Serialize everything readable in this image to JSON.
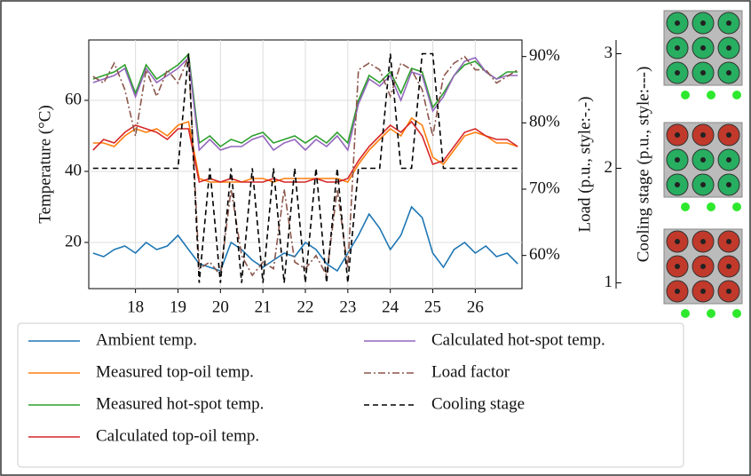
{
  "chart_data": {
    "type": "line",
    "ylabel": "Temperature (°C)",
    "y2label": "Load (p.u., style:-.-)",
    "y3label": "Cooling stage (p.u., style:---)",
    "xlim": [
      16.9,
      27.1
    ],
    "xticks": [
      18,
      19,
      20,
      21,
      22,
      23,
      24,
      25,
      26
    ],
    "ylim": [
      7,
      77
    ],
    "yticks": [
      20,
      40,
      60
    ],
    "y2lim": [
      55,
      92.5
    ],
    "y2ticks": [
      {
        "value": 60,
        "label": "60%"
      },
      {
        "value": 70,
        "label": "70%"
      },
      {
        "value": 80,
        "label": "80%"
      },
      {
        "value": 90,
        "label": "90%"
      }
    ],
    "y3lim": [
      0.95,
      3.12
    ],
    "y3ticks": [
      1,
      2,
      3
    ],
    "grid": true,
    "x": [
      17,
      17.25,
      17.5,
      17.75,
      18,
      18.25,
      18.5,
      18.75,
      19,
      19.25,
      19.5,
      19.75,
      20,
      20.25,
      20.5,
      20.75,
      21,
      21.25,
      21.5,
      21.75,
      22,
      22.25,
      22.5,
      22.75,
      23,
      23.25,
      23.5,
      23.75,
      24,
      24.25,
      24.5,
      24.75,
      25,
      25.25,
      25.5,
      25.75,
      26,
      26.25,
      26.5,
      26.75,
      27
    ],
    "series": [
      {
        "name": "Ambient temp.",
        "color": "#1f77b4",
        "dash": "solid",
        "axis": "y",
        "values": [
          17,
          16,
          18,
          19,
          17,
          20,
          18,
          19,
          22,
          18,
          14,
          13,
          12,
          20,
          18,
          15,
          13,
          15,
          17,
          16,
          20,
          18,
          14,
          12,
          17,
          22,
          28,
          24,
          18,
          22,
          30,
          27,
          17,
          13,
          18,
          20,
          17,
          19,
          16,
          17,
          14
        ]
      },
      {
        "name": "Measured top-oil temp.",
        "color": "#ff7f0e",
        "dash": "solid",
        "axis": "y",
        "values": [
          48,
          48,
          47,
          50,
          52,
          51,
          52,
          50,
          53,
          54,
          38,
          37,
          37,
          37,
          37,
          38,
          38,
          37,
          38,
          38,
          38,
          38,
          38,
          38,
          37,
          42,
          46,
          49,
          52,
          50,
          55,
          53,
          44,
          42,
          46,
          50,
          51,
          50,
          48,
          48,
          47
        ]
      },
      {
        "name": "Measured hot-spot temp.",
        "color": "#2ca02c",
        "dash": "solid",
        "axis": "y",
        "values": [
          66,
          67,
          68,
          70,
          62,
          70,
          66,
          68,
          70,
          73,
          48,
          50,
          47,
          49,
          48,
          50,
          51,
          48,
          49,
          50,
          48,
          50,
          48,
          51,
          48,
          60,
          67,
          65,
          68,
          62,
          69,
          68,
          58,
          62,
          67,
          70,
          71,
          68,
          66,
          68,
          68
        ]
      },
      {
        "name": "Calculated top-oil temp.",
        "color": "#d62728",
        "dash": "solid",
        "axis": "y",
        "values": [
          46,
          49,
          48,
          51,
          53,
          52,
          51,
          49,
          52,
          52,
          37,
          38,
          37,
          38,
          37,
          37,
          37,
          38,
          37,
          37,
          37,
          38,
          37,
          37,
          38,
          43,
          47,
          50,
          53,
          51,
          54,
          50,
          42,
          43,
          47,
          51,
          52,
          50,
          49,
          49,
          47
        ]
      },
      {
        "name": "Calculated hot-spot temp.",
        "color": "#9467bd",
        "dash": "solid",
        "axis": "y",
        "values": [
          65,
          66,
          67,
          69,
          61,
          69,
          65,
          67,
          69,
          72,
          46,
          49,
          46,
          47,
          47,
          49,
          50,
          46,
          48,
          49,
          46,
          49,
          47,
          50,
          46,
          59,
          66,
          64,
          67,
          60,
          68,
          67,
          57,
          61,
          67,
          71,
          72,
          68,
          66,
          67,
          67
        ]
      },
      {
        "name": "Load factor",
        "color": "#8c564b",
        "dash": "dashdot",
        "axis": "y2",
        "values": [
          87,
          86,
          89,
          85,
          78,
          88,
          84,
          88,
          86,
          90,
          58,
          59,
          57,
          70,
          60,
          57,
          59,
          58,
          70,
          59,
          58,
          60,
          57,
          70,
          58,
          88,
          89,
          88,
          84,
          89,
          88,
          85,
          78,
          87,
          89,
          90,
          88,
          88,
          86,
          87,
          88
        ]
      },
      {
        "name": "Cooling stage",
        "color": "#000000",
        "dash": "dashed",
        "axis": "y3",
        "values": [
          2,
          2,
          2,
          2,
          2,
          2,
          2,
          2,
          2,
          3,
          1,
          2,
          1,
          2,
          1,
          2,
          1,
          2,
          1,
          2,
          1,
          2,
          1,
          2,
          1,
          2,
          2,
          2,
          3,
          2,
          2,
          3,
          3,
          2,
          2,
          2,
          2,
          2,
          2,
          2,
          2
        ]
      }
    ]
  }
}
